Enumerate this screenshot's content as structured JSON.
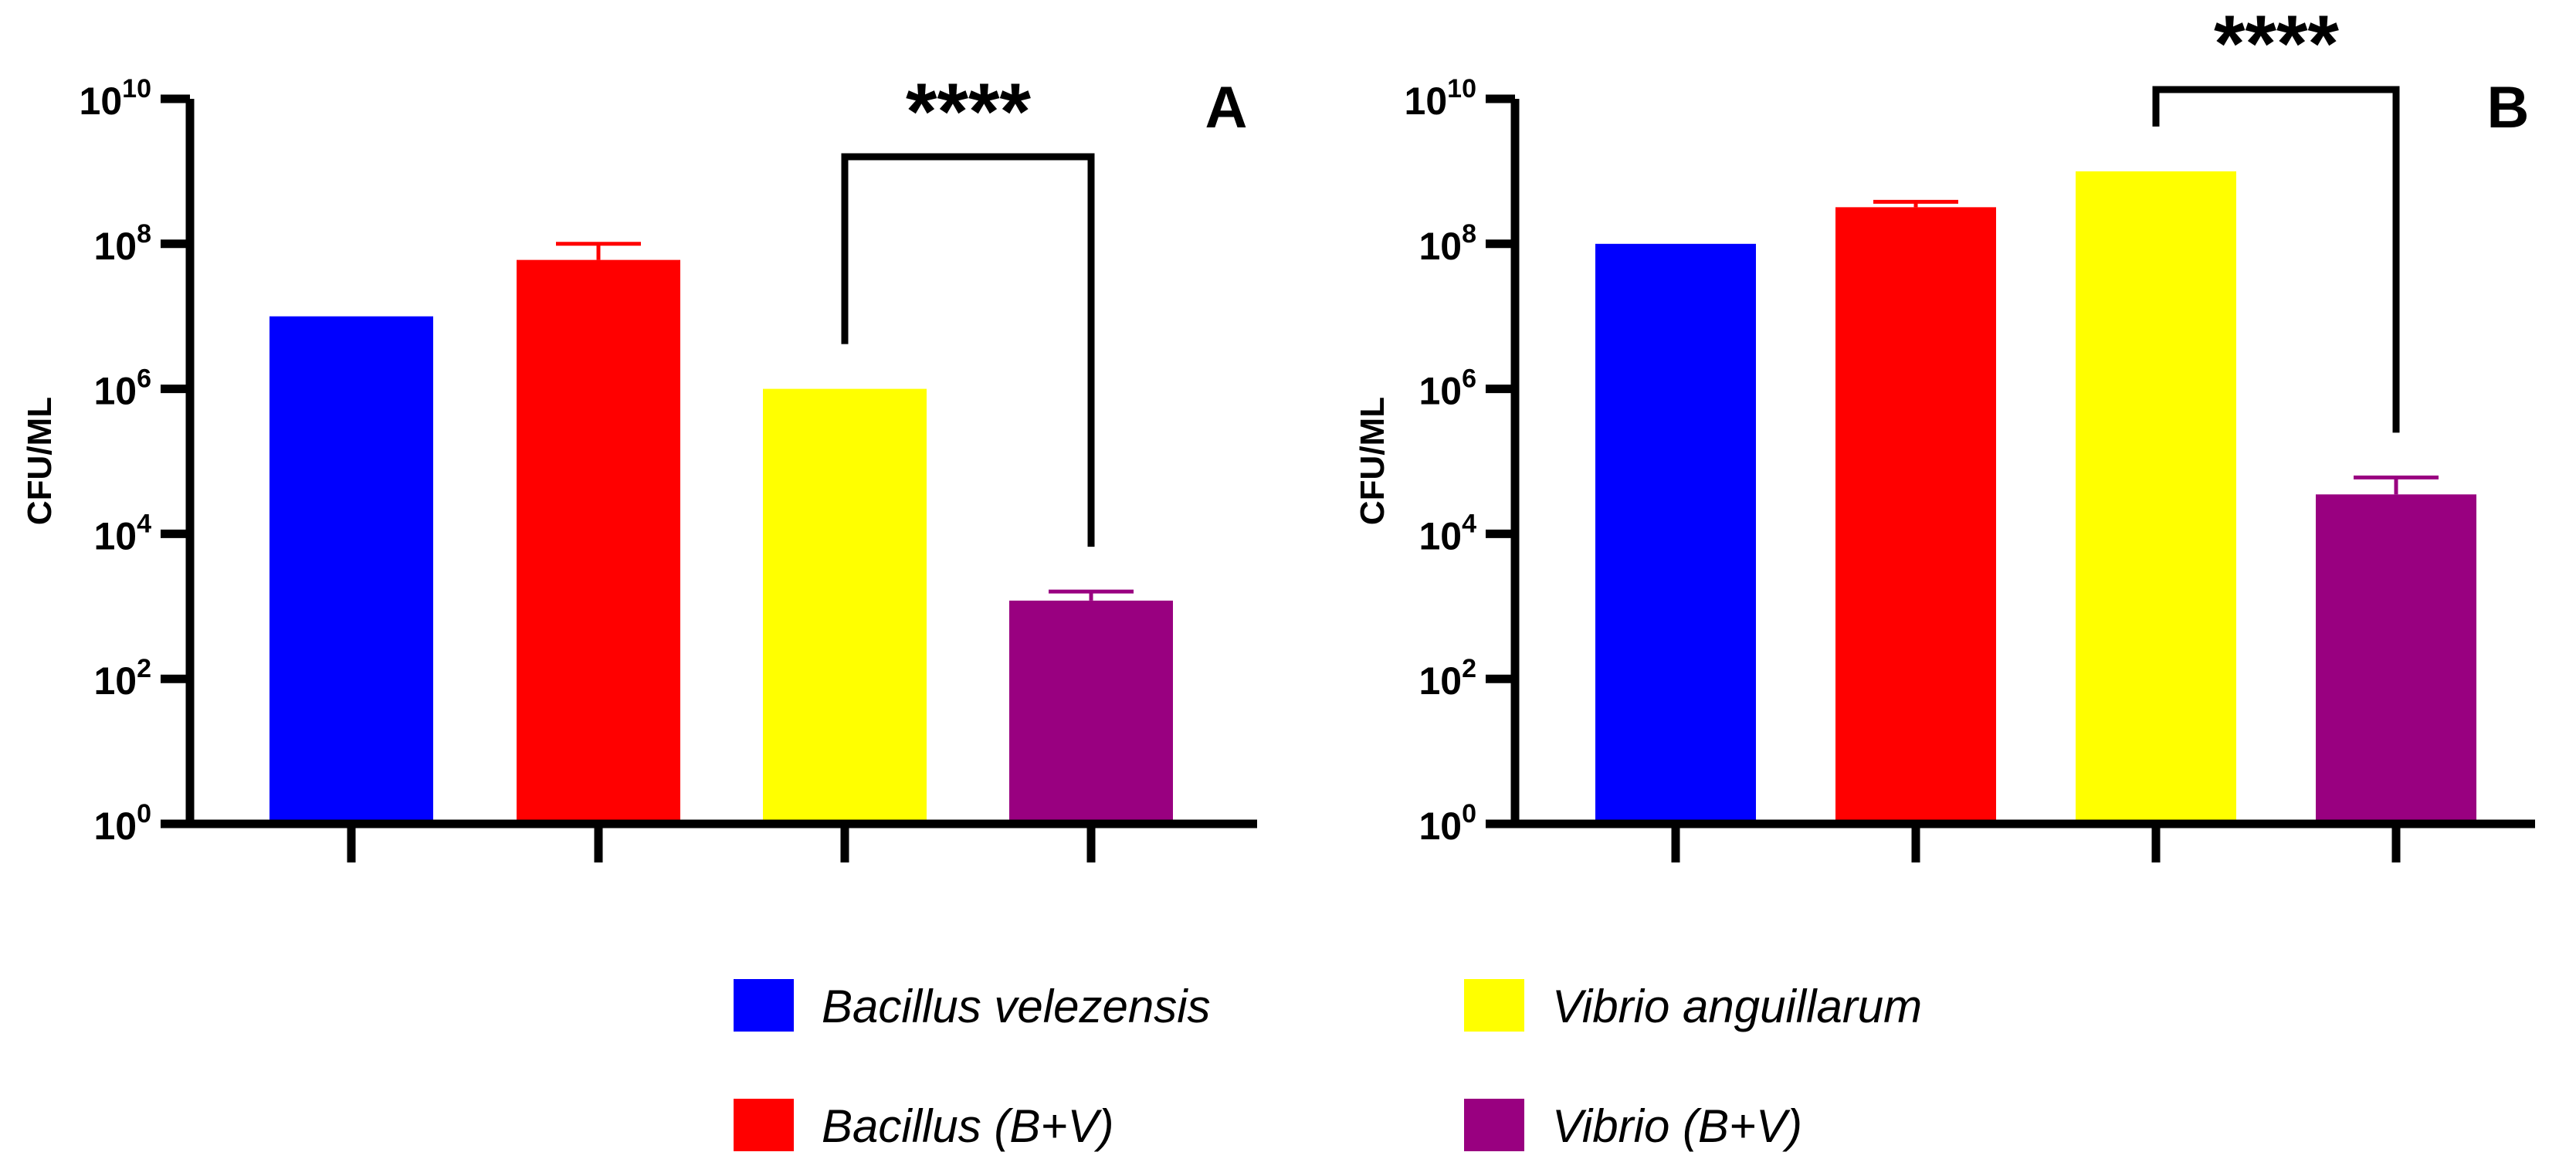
{
  "legend": [
    {
      "label": "Bacillus velezensis",
      "color": "#0000ff"
    },
    {
      "label": "Vibrio anguillarum",
      "color": "#ffff00"
    },
    {
      "label": "Bacillus (B+V)",
      "color": "#ff0000"
    },
    {
      "label": "Vibrio (B+V)",
      "color": "#990080"
    }
  ],
  "chart_data": [
    {
      "type": "bar",
      "title": "",
      "panel_label": "A",
      "ylabel": "CFU/ML",
      "xlabel": "",
      "yscale": "log10",
      "ylim": [
        1,
        10000000000
      ],
      "yticks": [
        {
          "base": "10",
          "exp": "0"
        },
        {
          "base": "10",
          "exp": "2"
        },
        {
          "base": "10",
          "exp": "4"
        },
        {
          "base": "10",
          "exp": "6"
        },
        {
          "base": "10",
          "exp": "8"
        },
        {
          "base": "10",
          "exp": "10"
        }
      ],
      "categories": [
        "Bacillus velezensis",
        "Bacillus (B+V)",
        "Vibrio anguillarum",
        "Vibrio (B+V)"
      ],
      "values": [
        10000000,
        60000000,
        1000000,
        1200
      ],
      "error_upper": [
        null,
        100000000,
        null,
        1600
      ],
      "colors": [
        "#0000ff",
        "#ff0000",
        "#ffff00",
        "#990080"
      ],
      "significance": {
        "label": "****",
        "between": [
          2,
          3
        ]
      }
    },
    {
      "type": "bar",
      "title": "",
      "panel_label": "B",
      "ylabel": "CFU/ML",
      "xlabel": "",
      "yscale": "log10",
      "ylim": [
        1,
        10000000000
      ],
      "yticks": [
        {
          "base": "10",
          "exp": "0"
        },
        {
          "base": "10",
          "exp": "2"
        },
        {
          "base": "10",
          "exp": "4"
        },
        {
          "base": "10",
          "exp": "6"
        },
        {
          "base": "10",
          "exp": "8"
        },
        {
          "base": "10",
          "exp": "10"
        }
      ],
      "categories": [
        "Bacillus velezensis",
        "Bacillus (B+V)",
        "Vibrio anguillarum",
        "Vibrio (B+V)"
      ],
      "values": [
        100000000,
        320000000,
        1000000000,
        35000
      ],
      "error_upper": [
        null,
        380000000,
        null,
        60000
      ],
      "colors": [
        "#0000ff",
        "#ff0000",
        "#ffff00",
        "#990080"
      ],
      "significance": {
        "label": "****",
        "between": [
          2,
          3
        ]
      }
    }
  ]
}
